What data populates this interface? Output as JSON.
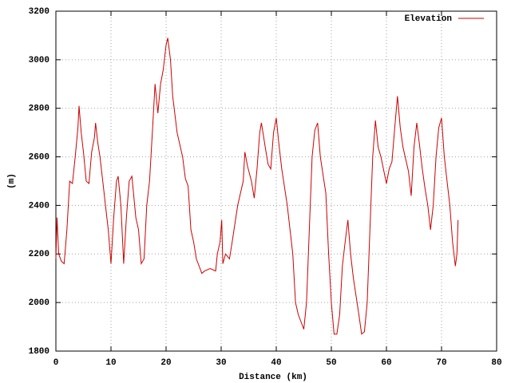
{
  "chart_data": {
    "type": "line",
    "xlabel": "Distance (km)",
    "ylabel": "(m)",
    "xlim": [
      0,
      80
    ],
    "xticks": [
      0,
      10,
      20,
      30,
      40,
      50,
      60,
      70,
      80
    ],
    "ylim": [
      1800,
      3200
    ],
    "yticks": [
      1800,
      2000,
      2200,
      2400,
      2600,
      2800,
      3000,
      3200
    ],
    "grid": true,
    "legend": "top-right",
    "x": [
      0,
      0.2,
      0.5,
      1,
      1.5,
      2,
      2.5,
      3,
      3.5,
      4,
      4.2,
      4.6,
      5,
      5.5,
      6,
      6.5,
      7,
      7.2,
      7.6,
      8,
      8.5,
      9,
      9.5,
      10,
      10.5,
      11,
      11.3,
      11.8,
      12.3,
      12.8,
      13.3,
      13.8,
      14.5,
      15,
      15.5,
      16,
      16.5,
      17,
      17.5,
      18,
      18.5,
      19,
      19.5,
      20,
      20.3,
      20.8,
      21.2,
      22,
      23,
      23.5,
      24,
      24.5,
      25,
      25.5,
      26,
      26.5,
      27,
      28,
      29,
      29.3,
      29.8,
      30.1,
      30.3,
      30.8,
      31.5,
      32,
      33,
      34,
      34.3,
      34.8,
      35.5,
      36,
      36.5,
      37,
      37.3,
      38,
      38.5,
      39,
      39.5,
      40,
      40.5,
      41,
      42,
      43,
      43.5,
      44,
      44.5,
      45,
      45.5,
      46,
      46.5,
      47,
      47.5,
      48,
      49,
      49.5,
      50,
      50.5,
      51,
      51.5,
      52,
      52.5,
      53,
      53.5,
      54,
      55,
      55.5,
      56,
      56.5,
      57,
      57.5,
      58,
      58.5,
      59,
      60,
      60.5,
      61,
      61.5,
      62,
      62.5,
      63,
      64,
      64.5,
      65,
      65.5,
      66,
      66.5,
      67,
      67.5,
      68,
      68.5,
      69,
      69.5,
      70,
      70.5,
      71,
      71.5,
      72,
      72.5,
      72.8,
      73
    ],
    "series": [
      {
        "name": "Elevation",
        "color": "#cc0000",
        "values": [
          2180,
          2350,
          2200,
          2170,
          2160,
          2300,
          2500,
          2490,
          2600,
          2720,
          2810,
          2700,
          2620,
          2500,
          2490,
          2620,
          2680,
          2740,
          2660,
          2600,
          2500,
          2400,
          2300,
          2160,
          2350,
          2500,
          2520,
          2400,
          2160,
          2350,
          2500,
          2520,
          2350,
          2300,
          2160,
          2180,
          2400,
          2500,
          2700,
          2900,
          2780,
          2900,
          2960,
          3060,
          3090,
          3000,
          2850,
          2700,
          2600,
          2510,
          2480,
          2300,
          2250,
          2180,
          2150,
          2120,
          2130,
          2140,
          2130,
          2200,
          2250,
          2340,
          2160,
          2200,
          2180,
          2250,
          2400,
          2500,
          2620,
          2560,
          2500,
          2430,
          2550,
          2700,
          2740,
          2640,
          2570,
          2550,
          2700,
          2760,
          2650,
          2550,
          2400,
          2200,
          2000,
          1950,
          1920,
          1890,
          2000,
          2300,
          2600,
          2710,
          2740,
          2600,
          2450,
          2200,
          2000,
          1870,
          1870,
          1950,
          2150,
          2250,
          2340,
          2200,
          2100,
          1950,
          1870,
          1880,
          2000,
          2300,
          2600,
          2750,
          2640,
          2600,
          2490,
          2550,
          2580,
          2720,
          2850,
          2720,
          2640,
          2540,
          2440,
          2640,
          2740,
          2650,
          2550,
          2470,
          2400,
          2300,
          2400,
          2600,
          2720,
          2760,
          2600,
          2500,
          2400,
          2250,
          2150,
          2200,
          2340
        ]
      }
    ]
  }
}
